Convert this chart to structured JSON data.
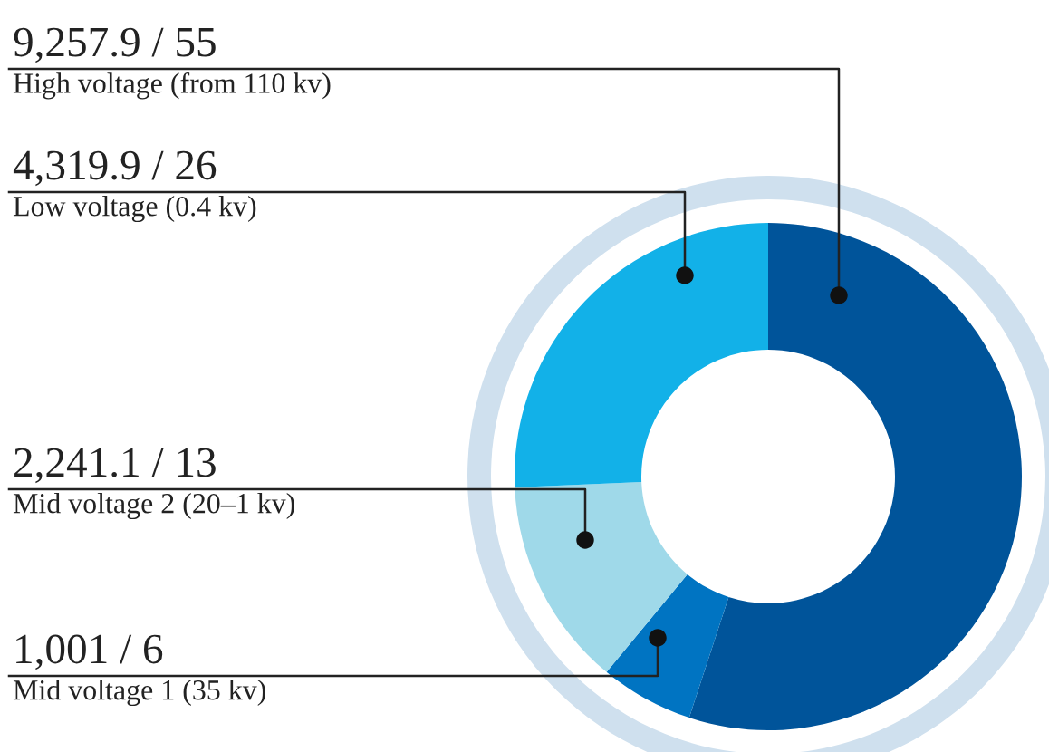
{
  "chart_data": {
    "type": "donut",
    "categories": [
      "High voltage (from 110 kv)",
      "Mid voltage 1 (35 kv)",
      "Mid voltage 2 (20–1 kv)",
      "Low voltage (0.4 kv)"
    ],
    "values": [
      9257.9,
      1001,
      2241.1,
      4319.9
    ],
    "colors": [
      "#00549a",
      "#0074c2",
      "#9fd9e9",
      "#12b1e8"
    ],
    "value_labels": [
      "9,257.9 / 55",
      "1,001 / 6",
      "2,241.1 / 13",
      "4,319.9 / 26"
    ]
  }
}
